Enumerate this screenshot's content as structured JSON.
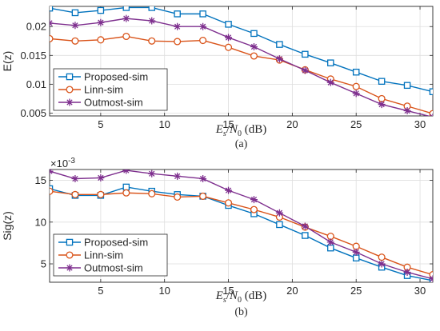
{
  "chart_data": [
    {
      "type": "line",
      "panel_label": "(a)",
      "ylabel": "E(z)",
      "xlabel": {
        "prefix": "E",
        "sub1": "s",
        "slash": "/",
        "mid": "N",
        "sub2": "0",
        "unit": " (dB)"
      },
      "xlim": [
        1,
        31
      ],
      "ylim": [
        0.0045,
        0.0235
      ],
      "xticks": [
        5,
        10,
        15,
        20,
        25,
        30
      ],
      "yticks": [
        0.005,
        0.01,
        0.015,
        0.02
      ],
      "ytick_labels": [
        "0.005",
        "0.01",
        "0.015",
        "0.02"
      ],
      "grid": true,
      "legend_position": "bottom-left",
      "x": [
        1,
        3,
        5,
        7,
        9,
        11,
        13,
        15,
        17,
        19,
        21,
        23,
        25,
        27,
        29,
        31
      ],
      "series": [
        {
          "name": "Proposed-sim",
          "color": "#0072BD",
          "marker": "square",
          "values": [
            0.0232,
            0.0224,
            0.0228,
            0.0233,
            0.0233,
            0.0222,
            0.0222,
            0.0204,
            0.0188,
            0.0169,
            0.0152,
            0.0137,
            0.0121,
            0.0105,
            0.0098,
            0.0087
          ]
        },
        {
          "name": "Linn-sim",
          "color": "#D95319",
          "marker": "circle",
          "values": [
            0.0179,
            0.0175,
            0.0177,
            0.0183,
            0.0175,
            0.0174,
            0.0176,
            0.0164,
            0.0149,
            0.0142,
            0.0125,
            0.0109,
            0.0096,
            0.0075,
            0.0062,
            0.0049
          ]
        },
        {
          "name": "Outmost-sim",
          "color": "#7E2F8E",
          "marker": "star",
          "values": [
            0.0206,
            0.0202,
            0.0207,
            0.0214,
            0.021,
            0.02,
            0.02,
            0.0181,
            0.0165,
            0.0144,
            0.0124,
            0.0103,
            0.0084,
            0.0065,
            0.0054,
            0.0043
          ]
        }
      ]
    },
    {
      "type": "line",
      "panel_label": "(b)",
      "ylabel": "Sig(z)",
      "exponent_label": {
        "base": "×10",
        "exp": "-3"
      },
      "xlabel": {
        "prefix": "E",
        "sub1": "s",
        "slash": "/",
        "mid": "N",
        "sub2": "0",
        "unit": " (dB)"
      },
      "xlim": [
        1,
        31
      ],
      "ylim": [
        2.8,
        16.3
      ],
      "xticks": [
        5,
        10,
        15,
        20,
        25,
        30
      ],
      "yticks": [
        5,
        10,
        15
      ],
      "ytick_labels": [
        "5",
        "10",
        "15"
      ],
      "grid": true,
      "legend_position": "bottom-left",
      "x": [
        1,
        3,
        5,
        7,
        9,
        11,
        13,
        15,
        17,
        19,
        21,
        23,
        25,
        27,
        29,
        31
      ],
      "series": [
        {
          "name": "Proposed-sim",
          "color": "#0072BD",
          "marker": "square",
          "values": [
            14.0,
            13.2,
            13.2,
            14.2,
            13.7,
            13.3,
            13.1,
            12.0,
            11.0,
            9.7,
            8.4,
            6.9,
            5.7,
            4.6,
            3.6,
            3.0
          ]
        },
        {
          "name": "Linn-sim",
          "color": "#D95319",
          "marker": "circle",
          "values": [
            13.7,
            13.3,
            13.3,
            13.5,
            13.4,
            13.0,
            13.1,
            12.3,
            11.5,
            10.6,
            9.4,
            8.3,
            7.1,
            5.8,
            4.6,
            3.7
          ]
        },
        {
          "name": "Outmost-sim",
          "color": "#7E2F8E",
          "marker": "star",
          "values": [
            16.1,
            15.2,
            15.3,
            16.2,
            15.8,
            15.5,
            15.2,
            13.8,
            12.7,
            11.1,
            9.5,
            7.6,
            6.4,
            5.0,
            4.0,
            3.2
          ]
        }
      ]
    }
  ]
}
